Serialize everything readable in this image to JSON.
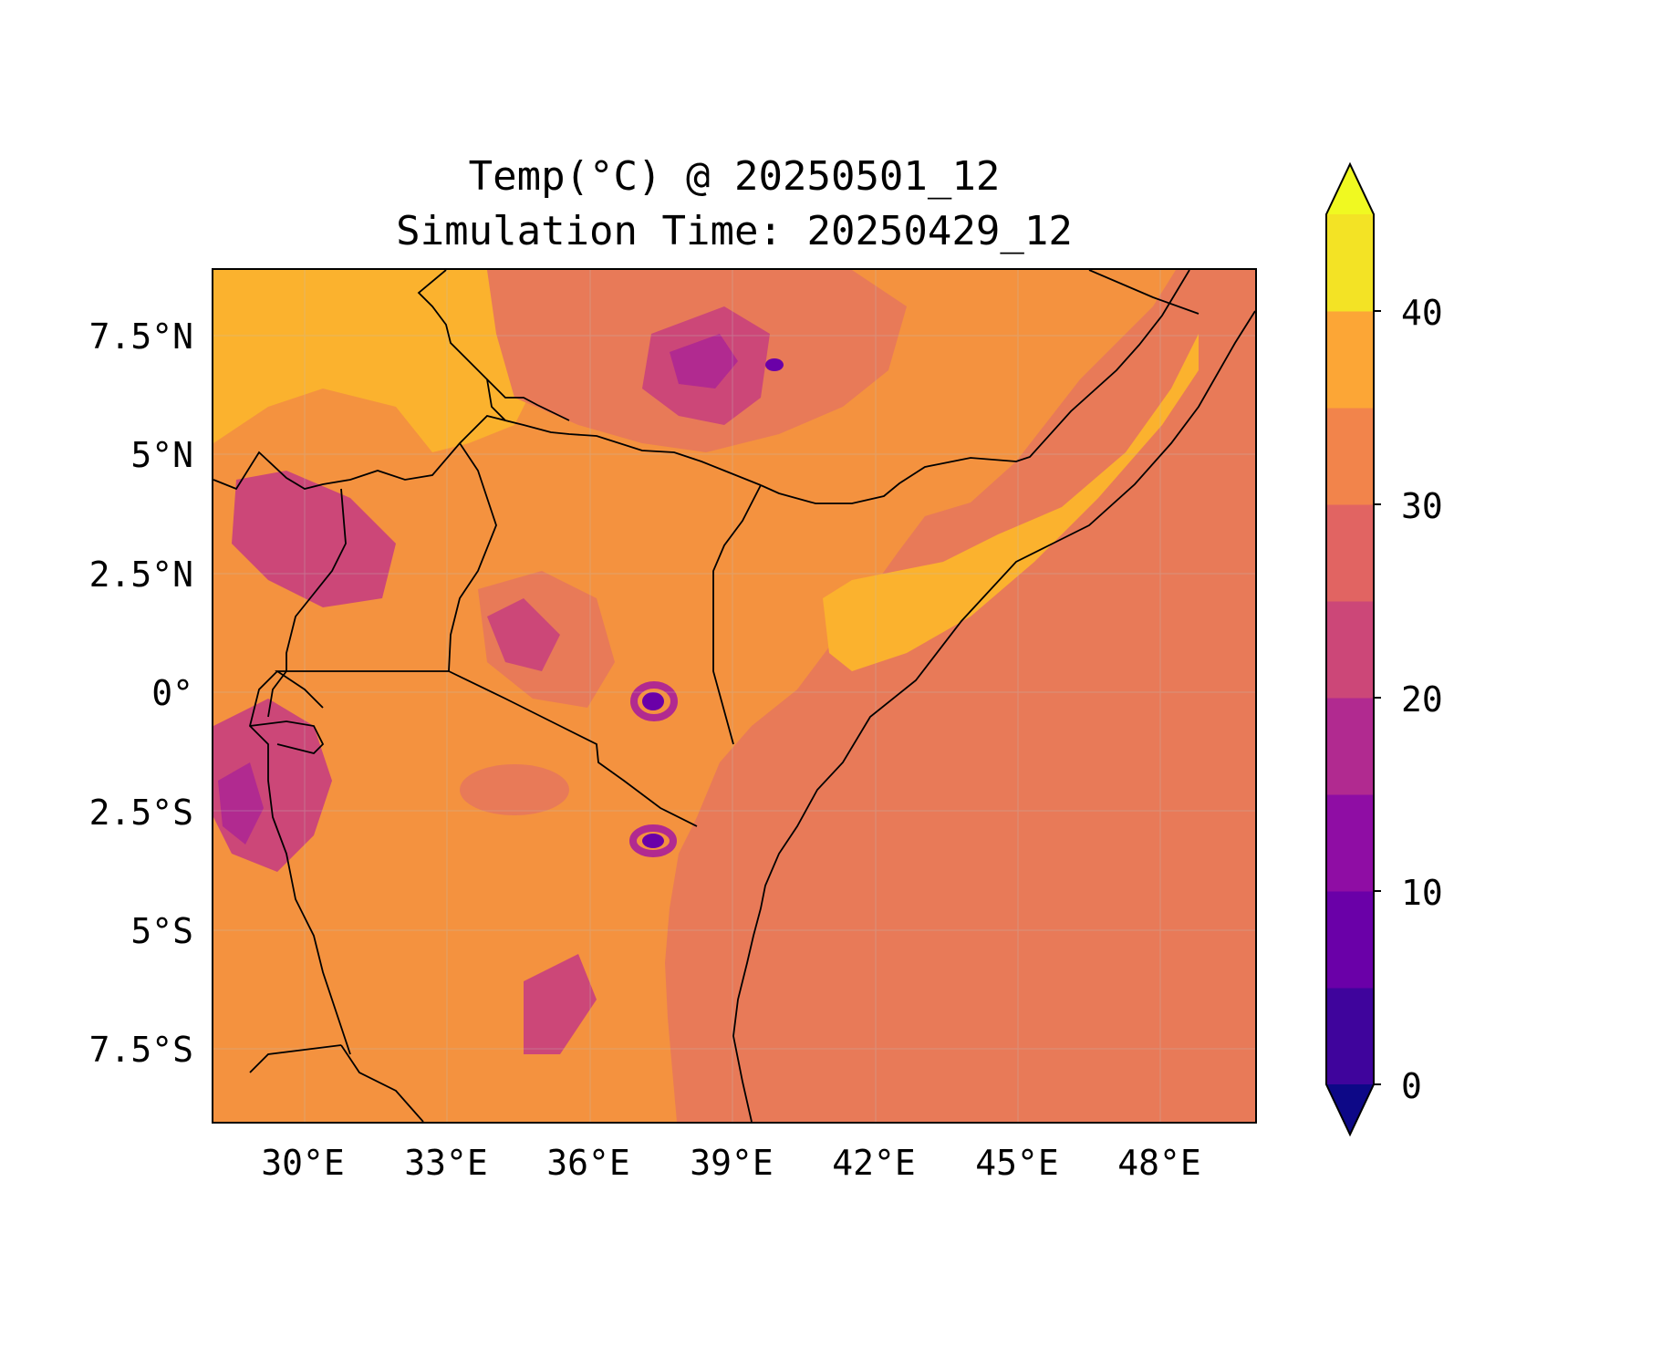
{
  "title": {
    "line1": "Temp(°C) @ 20250501_12",
    "line2": "Simulation Time: 20250429_12"
  },
  "map": {
    "lon_range": [
      27.5,
      49.5
    ],
    "lat_range": [
      -9.0,
      9.0
    ],
    "x_ticks": [
      "30°E",
      "33°E",
      "36°E",
      "39°E",
      "42°E",
      "45°E",
      "48°E"
    ],
    "y_ticks": [
      "7.5°N",
      "5°N",
      "2.5°N",
      "0°",
      "2.5°S",
      "5°S",
      "7.5°S"
    ],
    "gridlines": true
  },
  "colorbar": {
    "levels": [
      -5,
      0,
      5,
      10,
      15,
      20,
      25,
      30,
      35,
      40,
      45
    ],
    "ticks": [
      "0",
      "10",
      "20",
      "30",
      "40"
    ],
    "colors": [
      "#0d0887",
      "#3f049c",
      "#6a00a8",
      "#8f0da4",
      "#b12a90",
      "#cc4778",
      "#e16462",
      "#f2844b",
      "#fca636",
      "#f3e325",
      "#f0f921"
    ],
    "extend": "both"
  }
}
